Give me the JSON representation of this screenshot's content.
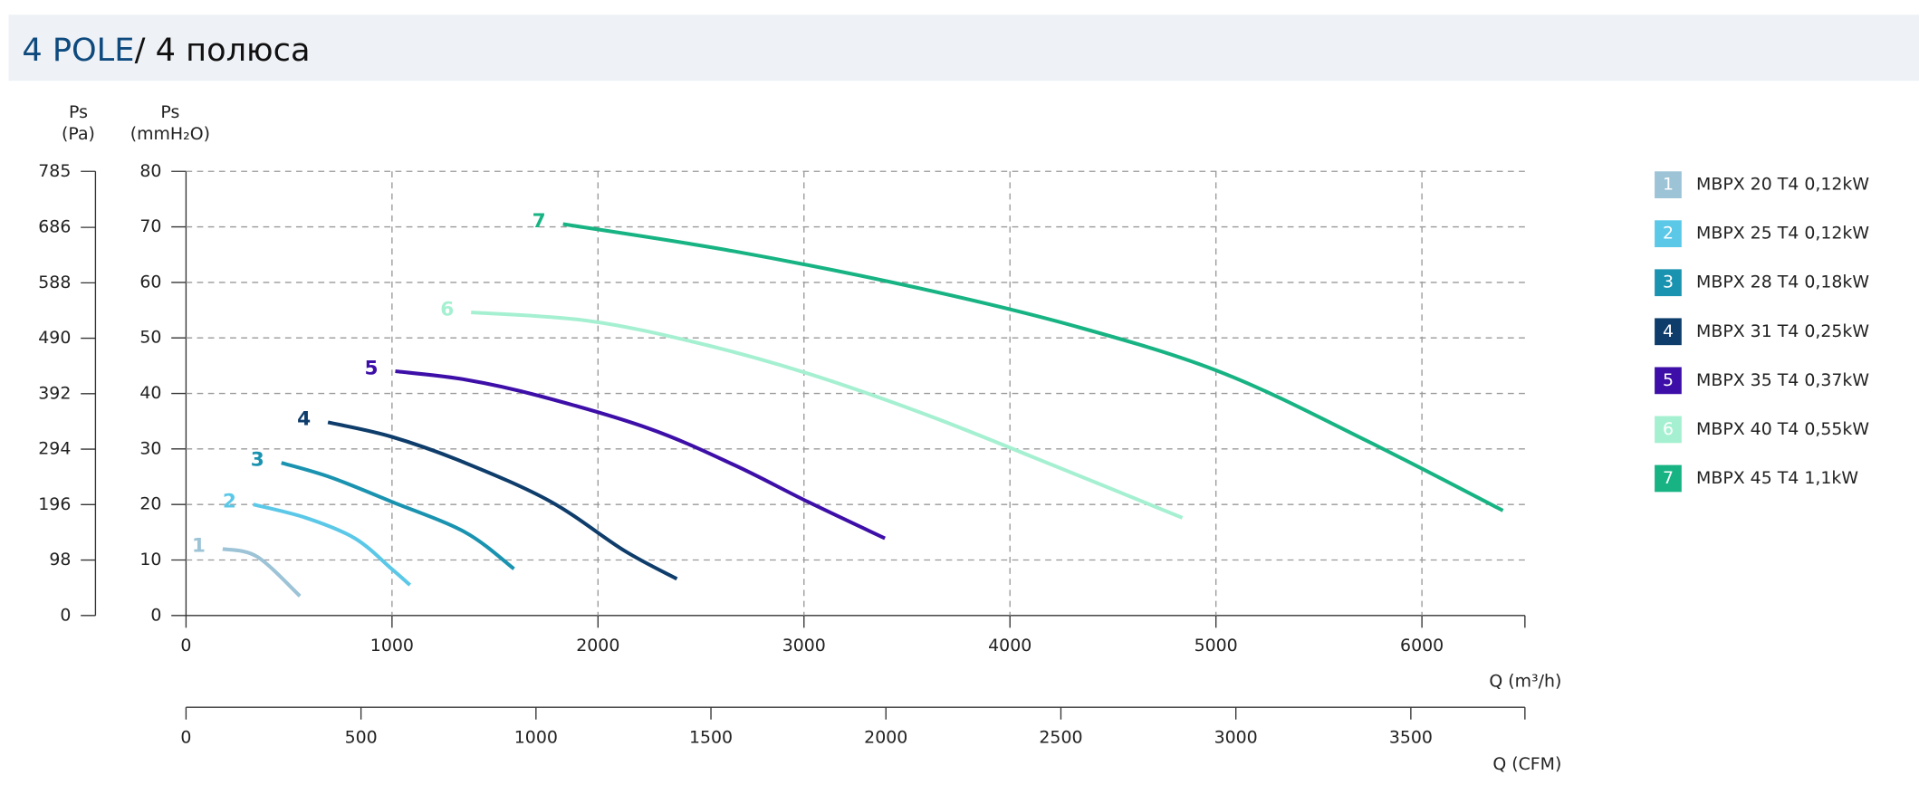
{
  "chart_data": {
    "type": "line",
    "title": "4 POLE",
    "subtitle": "/ 4 полюса",
    "y_label": "Ps",
    "y_unit": "(mmH₂O)",
    "y2_label": "Ps",
    "y2_unit": "(Pa)",
    "x_label": "Q (m³/h)",
    "x2_label": "Q (CFM)",
    "xlim": [
      0,
      6500
    ],
    "xticks": [
      0,
      1000,
      2000,
      3000,
      4000,
      5000,
      6000
    ],
    "x2lim": [
      0,
      3826
    ],
    "x2ticks": [
      0,
      500,
      1000,
      1500,
      2000,
      2500,
      3000,
      3500
    ],
    "ylim": [
      0,
      80
    ],
    "yticks": [
      0,
      10,
      20,
      30,
      40,
      50,
      60,
      70,
      80
    ],
    "y2lim": [
      0,
      785
    ],
    "y2ticks": [
      0,
      98,
      196,
      294,
      392,
      490,
      588,
      686,
      785
    ],
    "grid": true,
    "legend": "right",
    "series": [
      {
        "label": "1",
        "name": "MBPX 20 T4 0,12kW",
        "color": "#9cc3d6",
        "x": [
          178,
          345,
          553
        ],
        "values": [
          12,
          10.6,
          3.5
        ]
      },
      {
        "label": "2",
        "name": "MBPX 25 T4 0,12kW",
        "color": "#5bc8e8",
        "x": [
          327,
          582,
          820,
          998,
          1087
        ],
        "values": [
          20,
          17.6,
          13.9,
          8.4,
          5.5
        ]
      },
      {
        "label": "3",
        "name": "MBPX 28 T4 0,18kW",
        "color": "#1a93b0",
        "x": [
          463,
          701,
          998,
          1355,
          1592
        ],
        "values": [
          27.5,
          24.9,
          20.5,
          15,
          8.4
        ]
      },
      {
        "label": "4",
        "name": "MBPX 31 T4 0,25kW",
        "color": "#0e3d6b",
        "x": [
          689,
          998,
          1355,
          1771,
          2127,
          2383
        ],
        "values": [
          34.8,
          32.2,
          27.5,
          20.5,
          11.7,
          6.6
        ]
      },
      {
        "label": "5",
        "name": "MBPX 35 T4 0,37kW",
        "color": "#3d0fa8",
        "x": [
          1016,
          1355,
          1711,
          2246,
          2662,
          3018,
          3393
        ],
        "values": [
          44,
          42.5,
          39.6,
          33.7,
          27.1,
          20.5,
          13.9
        ]
      },
      {
        "label": "6",
        "name": "MBPX 40 T4 0,55kW",
        "color": "#a6f0d2",
        "x": [
          1384,
          1949,
          2484,
          3018,
          3613,
          4207,
          4837
        ],
        "values": [
          54.6,
          53.1,
          49.1,
          43.6,
          35.9,
          27.1,
          17.6
        ]
      },
      {
        "label": "7",
        "name": "MBPX 45 T4 1,1kW",
        "color": "#17b383",
        "x": [
          1830,
          2662,
          3553,
          4326,
          5039,
          5752,
          6393
        ],
        "values": [
          70.5,
          65.6,
          59,
          52,
          43.6,
          31.1,
          18.9
        ]
      }
    ]
  }
}
